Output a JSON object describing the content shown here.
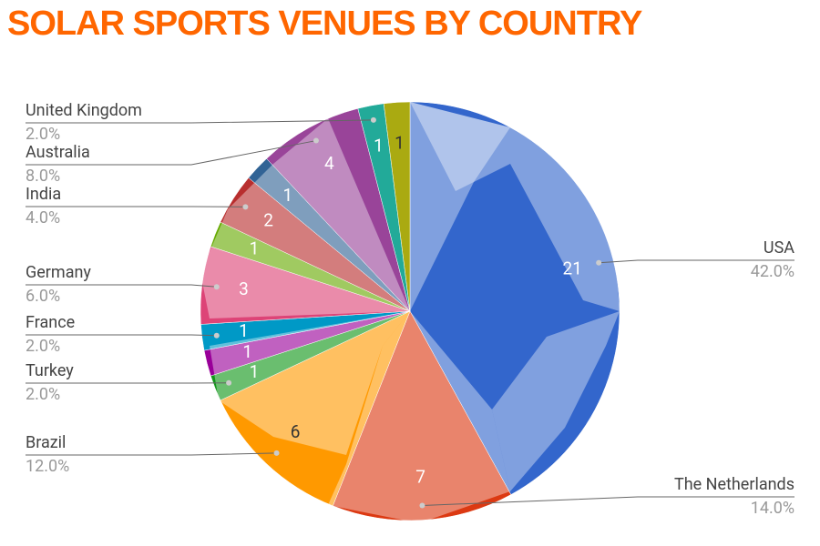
{
  "chart_data": {
    "type": "pie",
    "title": "SOLAR SPORTS VENUES BY COUNTRY",
    "categories": [
      "USA",
      "The Netherlands",
      "Brazil",
      "Turkey",
      null,
      "France",
      "Germany",
      null,
      "India",
      null,
      "Australia",
      "United Kingdom",
      null
    ],
    "values": [
      21,
      7,
      6,
      1,
      1,
      1,
      3,
      1,
      2,
      1,
      4,
      1,
      1
    ],
    "percent_labels": [
      "42.0%",
      "14.0%",
      "12.0%",
      "2.0%",
      null,
      "2.0%",
      "6.0%",
      null,
      "4.0%",
      null,
      "8.0%",
      "2.0%",
      null
    ],
    "colors": [
      "#3366cc",
      "#dc3912",
      "#ff9900",
      "#109618",
      "#990099",
      "#0099c6",
      "#dd4477",
      "#66aa00",
      "#b82e2e",
      "#316395",
      "#994499",
      "#22aa99",
      "#aaaa11"
    ]
  }
}
